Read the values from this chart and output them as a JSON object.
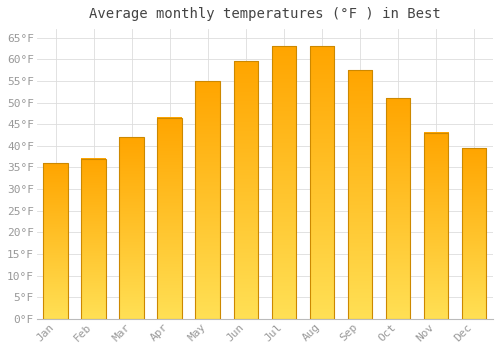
{
  "title": "Average monthly temperatures (°F ) in Best",
  "months": [
    "Jan",
    "Feb",
    "Mar",
    "Apr",
    "May",
    "Jun",
    "Jul",
    "Aug",
    "Sep",
    "Oct",
    "Nov",
    "Dec"
  ],
  "values": [
    36,
    37,
    42,
    46.5,
    55,
    59.5,
    63,
    63,
    57.5,
    51,
    43,
    39.5
  ],
  "bar_color_top": "#FFDD44",
  "bar_color_bottom": "#FFA500",
  "bar_edge_color": "#CC8800",
  "background_color": "#FFFFFF",
  "grid_color": "#DDDDDD",
  "ylim": [
    0,
    67
  ],
  "yticks": [
    0,
    5,
    10,
    15,
    20,
    25,
    30,
    35,
    40,
    45,
    50,
    55,
    60,
    65
  ],
  "title_fontsize": 10,
  "tick_fontsize": 8,
  "tick_color": "#999999",
  "font_family": "monospace"
}
